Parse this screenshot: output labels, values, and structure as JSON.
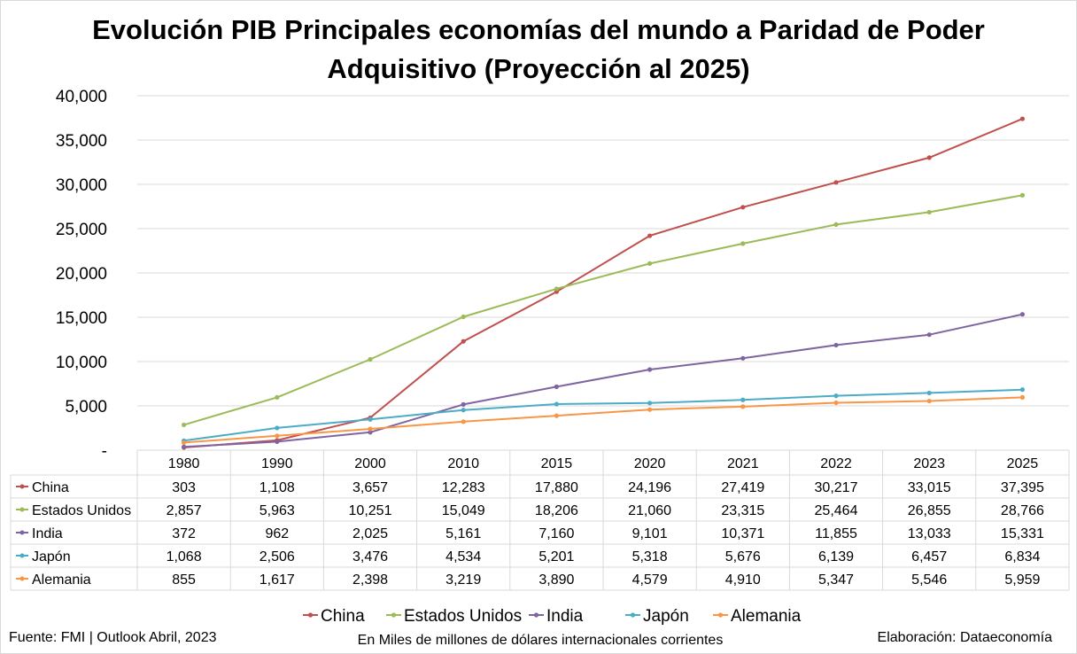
{
  "title_lines": [
    "Evolución PIB Principales economías del mundo a Paridad de Poder",
    "Adquisitivo (Proyección al 2025)"
  ],
  "footer": {
    "source": "Fuente: FMI | Outlook Abril, 2023",
    "unit_note": "En Miles de millones de dólares internacionales corrientes",
    "credit": "Elaboración: Dataeconomía"
  },
  "chart_data": {
    "type": "line",
    "title": "Evolución PIB Principales economías del mundo a Paridad de Poder Adquisitivo (Proyección al 2025)",
    "categories": [
      "1980",
      "1990",
      "2000",
      "2010",
      "2015",
      "2020",
      "2021",
      "2022",
      "2023",
      "2025"
    ],
    "ylim": [
      0,
      40000
    ],
    "yticks": [
      0,
      5000,
      10000,
      15000,
      20000,
      25000,
      30000,
      35000,
      40000
    ],
    "ytick_labels": [
      "-",
      "5,000",
      "10,000",
      "15,000",
      "20,000",
      "25,000",
      "30,000",
      "35,000",
      "40,000"
    ],
    "grid": true,
    "legend": "bottom",
    "data_table": true,
    "series": [
      {
        "name": "China",
        "color": "#c0504d",
        "values": [
          303,
          1108,
          3657,
          12283,
          17880,
          24196,
          27419,
          30217,
          33015,
          37395
        ],
        "labels": [
          "303",
          "1,108",
          "3,657",
          "12,283",
          "17,880",
          "24,196",
          "27,419",
          "30,217",
          "33,015",
          "37,395"
        ]
      },
      {
        "name": "Estados Unidos",
        "color": "#9bbb59",
        "values": [
          2857,
          5963,
          10251,
          15049,
          18206,
          21060,
          23315,
          25464,
          26855,
          28766
        ],
        "labels": [
          "2,857",
          "5,963",
          "10,251",
          "15,049",
          "18,206",
          "21,060",
          "23,315",
          "25,464",
          "26,855",
          "28,766"
        ]
      },
      {
        "name": "India",
        "color": "#8064a2",
        "values": [
          372,
          962,
          2025,
          5161,
          7160,
          9101,
          10371,
          11855,
          13033,
          15331
        ],
        "labels": [
          "372",
          "962",
          "2,025",
          "5,161",
          "7,160",
          "9,101",
          "10,371",
          "11,855",
          "13,033",
          "15,331"
        ]
      },
      {
        "name": "Japón",
        "color": "#4bacc6",
        "values": [
          1068,
          2506,
          3476,
          4534,
          5201,
          5318,
          5676,
          6139,
          6457,
          6834
        ],
        "labels": [
          "1,068",
          "2,506",
          "3,476",
          "4,534",
          "5,201",
          "5,318",
          "5,676",
          "6,139",
          "6,457",
          "6,834"
        ]
      },
      {
        "name": "Alemania",
        "color": "#f79646",
        "values": [
          855,
          1617,
          2398,
          3219,
          3890,
          4579,
          4910,
          5347,
          5546,
          5959
        ],
        "labels": [
          "855",
          "1,617",
          "2,398",
          "3,219",
          "3,890",
          "4,579",
          "4,910",
          "5,347",
          "5,546",
          "5,959"
        ]
      }
    ]
  }
}
